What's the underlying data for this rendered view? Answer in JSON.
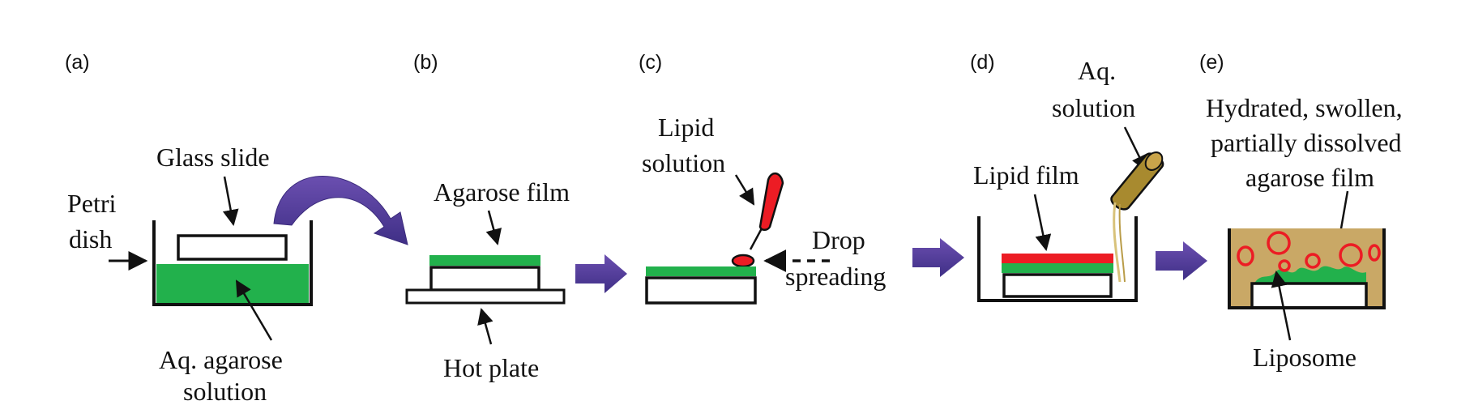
{
  "panels": {
    "a": {
      "label": "(a)",
      "glass_slide": "Glass slide",
      "petri_line1": "Petri",
      "petri_line2": "dish",
      "agarose_line1": "Aq. agarose",
      "agarose_line2": "solution"
    },
    "b": {
      "label": "(b)",
      "agarose_film": "Agarose film",
      "hot_plate": "Hot plate"
    },
    "c": {
      "label": "(c)",
      "lipid_line1": "Lipid",
      "lipid_line2": "solution",
      "drop_line1": "Drop",
      "drop_line2": "spreading"
    },
    "d": {
      "label": "(d)",
      "aq_line1": "Aq.",
      "aq_line2": "solution",
      "lipid_film": "Lipid film"
    },
    "e": {
      "label": "(e)",
      "hydrated_line1": "Hydrated, swollen,",
      "hydrated_line2": "partially dissolved",
      "hydrated_line3": "agarose film",
      "liposome": "Liposome"
    }
  },
  "colors": {
    "agarose_green": "#22b14c",
    "lipid_red": "#ec1c24",
    "process_arrow": "#5b3f9c",
    "swollen_gel": "#c9a866",
    "bottle": "#a88a2f"
  },
  "icons": [
    "curved-transfer-arrow",
    "process-arrow",
    "pipette-icon",
    "pouring-bottle-icon"
  ]
}
